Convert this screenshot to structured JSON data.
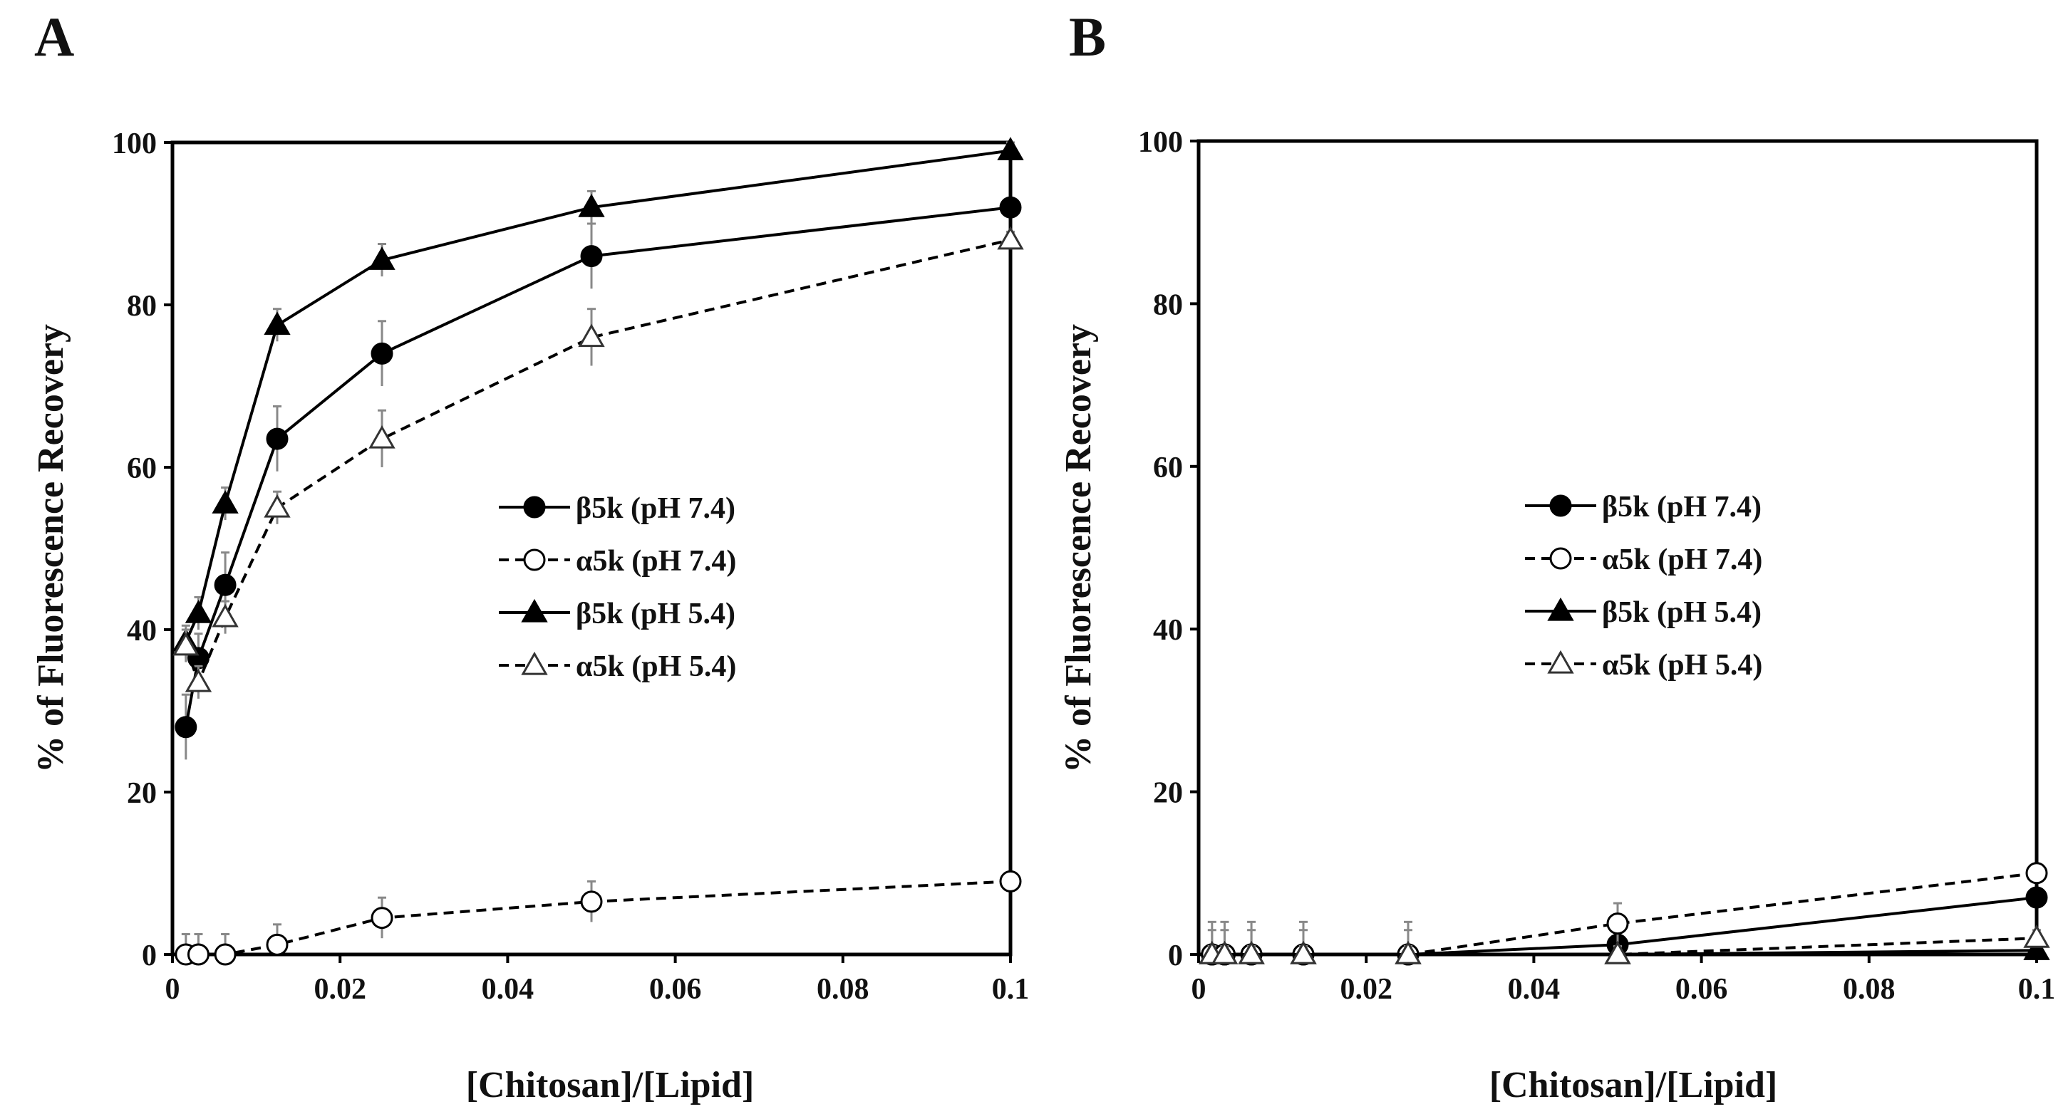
{
  "chart_data": [
    {
      "panel": "A",
      "type": "line",
      "xlabel": "[Chitosan]/[Lipid]",
      "ylabel": "% of Fluorescence Recovery",
      "xlim": [
        0,
        0.1
      ],
      "ylim": [
        0,
        100
      ],
      "x_ticks": [
        "0",
        "0.02",
        "0.04",
        "0.06",
        "0.08",
        "0.1"
      ],
      "y_ticks": [
        "0",
        "20",
        "40",
        "60",
        "80",
        "100"
      ],
      "legend_position": "center-right",
      "series": [
        {
          "name": "β5k (pH 7.4)",
          "marker": "circle",
          "filled": true,
          "dashed": false,
          "x": [
            0.0016,
            0.0031,
            0.0063,
            0.0125,
            0.025,
            0.05,
            0.1
          ],
          "y": [
            28,
            36.5,
            45.5,
            63.5,
            74,
            86,
            92
          ],
          "err": [
            4,
            3,
            4,
            4,
            4,
            4,
            1
          ]
        },
        {
          "name": "α5k (pH 7.4)",
          "marker": "circle",
          "filled": false,
          "dashed": true,
          "x": [
            0.0016,
            0.0031,
            0.0063,
            0.0125,
            0.025,
            0.05,
            0.1
          ],
          "y": [
            0,
            0,
            0,
            1.2,
            4.5,
            6.5,
            9
          ],
          "err": [
            2.5,
            2.5,
            2.5,
            2.5,
            2.5,
            2.5,
            1
          ]
        },
        {
          "name": "β5k (pH 5.4)",
          "marker": "triangle",
          "filled": true,
          "dashed": false,
          "x": [
            0.0016,
            0.0031,
            0.0063,
            0.0125,
            0.025,
            0.05,
            0.1
          ],
          "y": [
            38.5,
            42,
            55.5,
            77.5,
            85.5,
            92,
            99
          ],
          "err": [
            2,
            2,
            2,
            2,
            2,
            2,
            1
          ]
        },
        {
          "name": "α5k (pH 5.4)",
          "marker": "triangle",
          "filled": false,
          "dashed": true,
          "x": [
            0.0016,
            0.0031,
            0.0063,
            0.0125,
            0.025,
            0.05,
            0.1
          ],
          "y": [
            38,
            33.5,
            41.5,
            55,
            63.5,
            76,
            88
          ],
          "err": [
            2,
            2,
            2,
            2,
            3.5,
            3.5,
            1
          ]
        }
      ]
    },
    {
      "panel": "B",
      "type": "line",
      "xlabel": "[Chitosan]/[Lipid]",
      "ylabel": "% of Fluorescence Recovery",
      "xlim": [
        0,
        0.1
      ],
      "ylim": [
        0,
        100
      ],
      "x_ticks": [
        "0",
        "0.02",
        "0.04",
        "0.06",
        "0.08",
        "0.1"
      ],
      "y_ticks": [
        "0",
        "20",
        "40",
        "60",
        "80",
        "100"
      ],
      "legend_position": "center-right",
      "series": [
        {
          "name": "β5k (pH 7.4)",
          "marker": "circle",
          "filled": true,
          "dashed": false,
          "x": [
            0.0016,
            0.0031,
            0.0063,
            0.0125,
            0.025,
            0.05,
            0.1
          ],
          "y": [
            0,
            0,
            0,
            0,
            0,
            1.2,
            7
          ],
          "err": [
            4,
            4,
            4,
            4,
            4,
            1,
            1
          ]
        },
        {
          "name": "α5k (pH 7.4)",
          "marker": "circle",
          "filled": false,
          "dashed": true,
          "x": [
            0.0016,
            0.0031,
            0.0063,
            0.0125,
            0.025,
            0.05,
            0.1
          ],
          "y": [
            0,
            0,
            0,
            0,
            0,
            3.8,
            10
          ],
          "err": [
            3,
            3,
            3,
            3,
            3,
            2.5,
            1
          ]
        },
        {
          "name": "β5k (pH 5.4)",
          "marker": "triangle",
          "filled": true,
          "dashed": false,
          "x": [
            0.0016,
            0.0031,
            0.0063,
            0.0125,
            0.025,
            0.05,
            0.1
          ],
          "y": [
            0,
            0,
            0,
            0,
            0,
            0,
            0.5
          ],
          "err": [
            1,
            1,
            1,
            1,
            1,
            1,
            1
          ]
        },
        {
          "name": "α5k (pH 5.4)",
          "marker": "triangle",
          "filled": false,
          "dashed": true,
          "x": [
            0.0016,
            0.0031,
            0.0063,
            0.0125,
            0.025,
            0.05,
            0.1
          ],
          "y": [
            0,
            0,
            0,
            0,
            0,
            0,
            2
          ],
          "err": [
            1,
            1,
            1,
            1,
            1,
            1,
            1
          ]
        }
      ]
    }
  ]
}
